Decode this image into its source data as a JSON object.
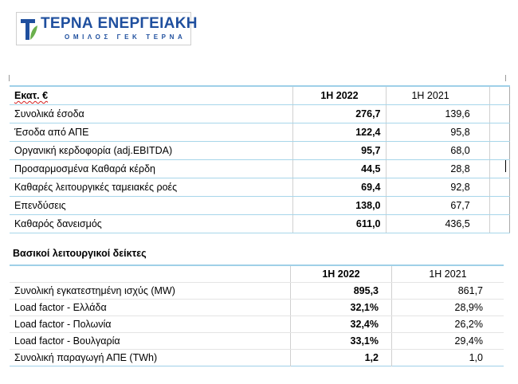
{
  "logo": {
    "title": "ΤΕΡΝΑ ΕΝΕΡΓΕΙΑΚΗ",
    "subtitle": "ΟΜΙΛΟΣ ΓΕΚ ΤΕΡΝΑ",
    "icon": "terna-leaf-icon",
    "color": "#1f4f9e"
  },
  "financials": {
    "header": {
      "label": "Εκατ. €",
      "col1": "1Η 2022",
      "col2": "1Η 2021"
    },
    "rows": [
      {
        "label": "Συνολικά έσοδα",
        "v2022": "276,7",
        "v2021": "139,6"
      },
      {
        "label": "Έσοδα από ΑΠΕ",
        "v2022": "122,4",
        "v2021": "95,8"
      },
      {
        "label": "Οργανική κερδοφορία (adj.EBITDA)",
        "v2022": "95,7",
        "v2021": "68,0"
      },
      {
        "label": "Προσαρμοσμένα Καθαρά κέρδη",
        "v2022": "44,5",
        "v2021": "28,8"
      },
      {
        "label": "Καθαρές λειτουργικές ταμειακές ροές",
        "v2022": "69,4",
        "v2021": "92,8"
      },
      {
        "label": "Επενδύσεις",
        "v2022": "138,0",
        "v2021": "67,7"
      },
      {
        "label": "Καθαρός δανεισμός",
        "v2022": "611,0",
        "v2021": "436,5"
      }
    ]
  },
  "kpis": {
    "title": "Βασικοί λειτουργικοί δείκτες",
    "header": {
      "col1": "1Η 2022",
      "col2": "1Η 2021"
    },
    "rows": [
      {
        "label": "Συνολική εγκατεστημένη ισχύς (MW)",
        "v2022": "895,3",
        "v2021": "861,7"
      },
      {
        "label": "Load factor - Ελλάδα",
        "v2022": "32,1%",
        "v2021": "28,9%"
      },
      {
        "label": "Load factor - Πολωνία",
        "v2022": "32,4%",
        "v2021": "26,2%"
      },
      {
        "label": "Load factor - Βουλγαρία",
        "v2022": "33,1%",
        "v2021": "29,4%"
      },
      {
        "label": "Συνολική παραγωγή ΑΠΕ (TWh)",
        "v2022": "1,2",
        "v2021": "1,0"
      }
    ]
  }
}
